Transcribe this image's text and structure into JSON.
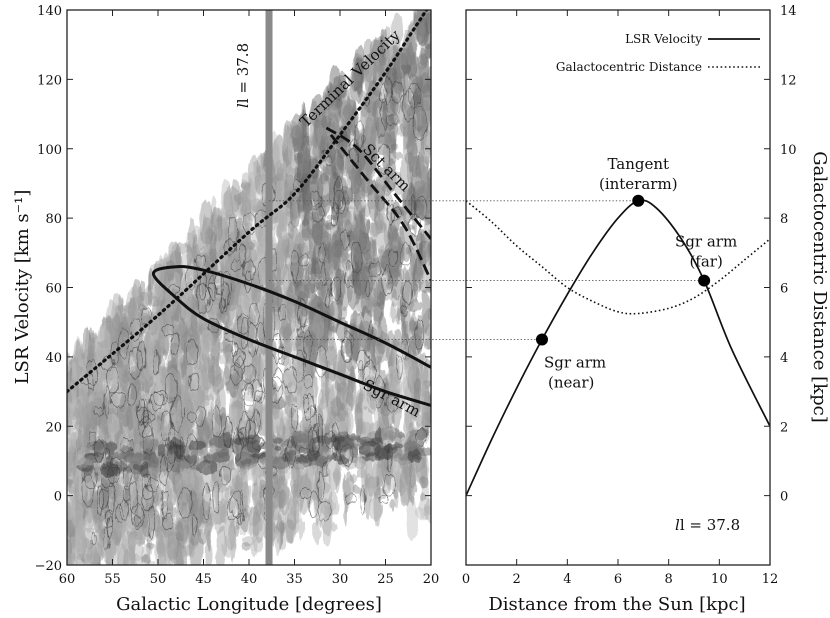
{
  "chart_data": [
    {
      "type": "heatmap",
      "xlabel": "Galactic Longitude [degrees]",
      "ylabel": "LSR Velocity [km s⁻¹]",
      "xlim": [
        60,
        20
      ],
      "ylim": [
        -20,
        140
      ],
      "xticks": [
        "60",
        "55",
        "50",
        "45",
        "40",
        "35",
        "30",
        "25",
        "20"
      ],
      "yticks": [
        "−20",
        "0",
        "20",
        "40",
        "60",
        "80",
        "100",
        "120",
        "140"
      ],
      "highlight_longitude": 37.8,
      "highlight_label": "l = 37.8",
      "lines": [
        {
          "label": "Terminal Velocity",
          "style": "dotted",
          "x": [
            60,
            50,
            40,
            35,
            30,
            25,
            22,
            20
          ],
          "y": [
            30,
            52,
            76,
            87,
            104,
            122,
            134,
            142
          ]
        },
        {
          "label": "Sct arm",
          "style": "dashed",
          "x": [
            31,
            27,
            23,
            20
          ],
          "y": [
            104,
            91,
            78,
            62
          ]
        },
        {
          "label": "Sct arm",
          "style": "dashed",
          "x": [
            31.5,
            28,
            24,
            20
          ],
          "y": [
            106,
            100,
            87,
            74
          ]
        },
        {
          "label": "Sgr arm",
          "style": "solid",
          "x": [
            50.5,
            48,
            45,
            40,
            35,
            30,
            25,
            20
          ],
          "y": [
            64,
            66,
            65,
            61,
            56,
            50,
            44,
            37
          ]
        },
        {
          "label": "Sgr arm",
          "style": "solid",
          "x": [
            50.5,
            48,
            45,
            40,
            35,
            30,
            25,
            20
          ],
          "y": [
            64,
            57,
            51,
            45,
            40,
            35,
            30,
            26
          ]
        }
      ],
      "annotations": {
        "terminal": "Terminal Velocity",
        "sct": "Sct arm",
        "sgr": "Sgr arm"
      }
    },
    {
      "type": "line",
      "xlabel": "Distance from the Sun [kpc]",
      "ylabel_right": "Galactocentric Distance [kpc]",
      "xlim": [
        0,
        12
      ],
      "xticks": [
        "0",
        "2",
        "4",
        "6",
        "8",
        "10",
        "12"
      ],
      "ylim_right": [
        -2,
        14
      ],
      "yticks_right": [
        "0",
        "2",
        "4",
        "6",
        "8",
        "10",
        "12",
        "14"
      ],
      "legend": [
        "LSR Velocity",
        "Galactocentric Distance"
      ],
      "legend_placement": "top-right",
      "series": [
        {
          "name": "LSR Velocity",
          "style": "solid",
          "x": [
            0,
            1,
            2,
            3,
            4,
            5,
            6,
            6.8,
            7.5,
            8.5,
            9.4,
            10.5,
            12
          ],
          "y": [
            0,
            16,
            31,
            45,
            58,
            70,
            80,
            85,
            83,
            74,
            62,
            42,
            20
          ]
        },
        {
          "name": "Galactocentric Distance",
          "style": "dotted",
          "x": [
            0,
            1,
            2,
            3,
            4,
            5,
            6,
            6.8,
            8,
            9,
            10,
            11,
            12
          ],
          "y": [
            8.5,
            7.9,
            7.2,
            6.6,
            6.0,
            5.6,
            5.3,
            5.25,
            5.4,
            5.7,
            6.2,
            6.8,
            7.4
          ]
        }
      ],
      "points": [
        {
          "label": "Tangent",
          "label2": "(interarm)",
          "x": 6.8,
          "v": 85
        },
        {
          "label": "Sgr arm",
          "label2": "(far)",
          "x": 9.4,
          "v": 62
        },
        {
          "label": "Sgr arm",
          "label2": "(near)",
          "x": 3.0,
          "v": 45
        }
      ],
      "corner_label": "l = 37.8"
    }
  ]
}
